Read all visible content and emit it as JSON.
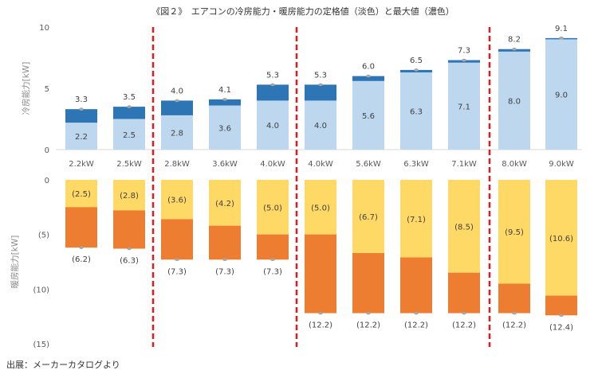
{
  "chart_data": {
    "type": "bar",
    "title": "《図２》　エアコンの冷房能力・暖房能力の定格値（淡色）と最大値（濃色）",
    "source": "出展：メーカーカタログより",
    "categories": [
      "2.2kW",
      "2.5kW",
      "2.8kW",
      "3.6kW",
      "4.0kW",
      "4.0kW",
      "5.6kW",
      "6.3kW",
      "7.1kW",
      "8.0kW",
      "9.0kW"
    ],
    "groups": [
      [
        0,
        1
      ],
      [
        2,
        3,
        4
      ],
      [
        5,
        6,
        7,
        8
      ],
      [
        9,
        10
      ]
    ],
    "cooling": {
      "ylabel": "冷房能力[kW]",
      "ylim": [
        0,
        10
      ],
      "ticks": [
        "0",
        "5",
        "10"
      ],
      "tick_values": [
        0,
        5,
        10
      ],
      "series": [
        {
          "name": "定格値",
          "color": "#bdd7ee",
          "values": [
            2.2,
            2.5,
            2.8,
            3.6,
            4.0,
            4.0,
            5.6,
            6.3,
            7.1,
            8.0,
            9.0
          ],
          "labels": [
            "2.2",
            "2.5",
            "2.8",
            "3.6",
            "4.0",
            "4.0",
            "5.6",
            "6.3",
            "7.1",
            "8.0",
            "9.0"
          ]
        },
        {
          "name": "最大値",
          "color": "#2e75b6",
          "values": [
            3.3,
            3.5,
            4.0,
            4.1,
            5.3,
            5.3,
            6.0,
            6.5,
            7.3,
            8.2,
            9.1
          ],
          "labels": [
            "3.3",
            "3.5",
            "4.0",
            "4.1",
            "5.3",
            "5.3",
            "6.0",
            "6.5",
            "7.3",
            "8.2",
            "9.1"
          ]
        }
      ]
    },
    "heating": {
      "ylabel": "暖房能力[kW]",
      "ylim": [
        0,
        15
      ],
      "ticks": [
        "0",
        "(5)",
        "(10)",
        "(15)"
      ],
      "tick_values": [
        0,
        5,
        10,
        15
      ],
      "series": [
        {
          "name": "定格値",
          "color": "#ffd966",
          "values": [
            2.5,
            2.8,
            3.6,
            4.2,
            5.0,
            5.0,
            6.7,
            7.1,
            8.5,
            9.5,
            10.6
          ],
          "labels": [
            "(2.5)",
            "(2.8)",
            "(3.6)",
            "(4.2)",
            "(5.0)",
            "(5.0)",
            "(6.7)",
            "(7.1)",
            "(8.5)",
            "(9.5)",
            "(10.6)"
          ]
        },
        {
          "name": "最大値",
          "color": "#ed7d31",
          "values": [
            6.2,
            6.3,
            7.3,
            7.3,
            7.3,
            12.2,
            12.2,
            12.2,
            12.2,
            12.2,
            12.4
          ],
          "labels": [
            "(6.2)",
            "(6.3)",
            "(7.3)",
            "(7.3)",
            "(7.3)",
            "(12.2)",
            "(12.2)",
            "(12.2)",
            "(12.2)",
            "(12.2)",
            "(12.4)"
          ]
        }
      ]
    },
    "divider_color": "#e31a1c"
  }
}
